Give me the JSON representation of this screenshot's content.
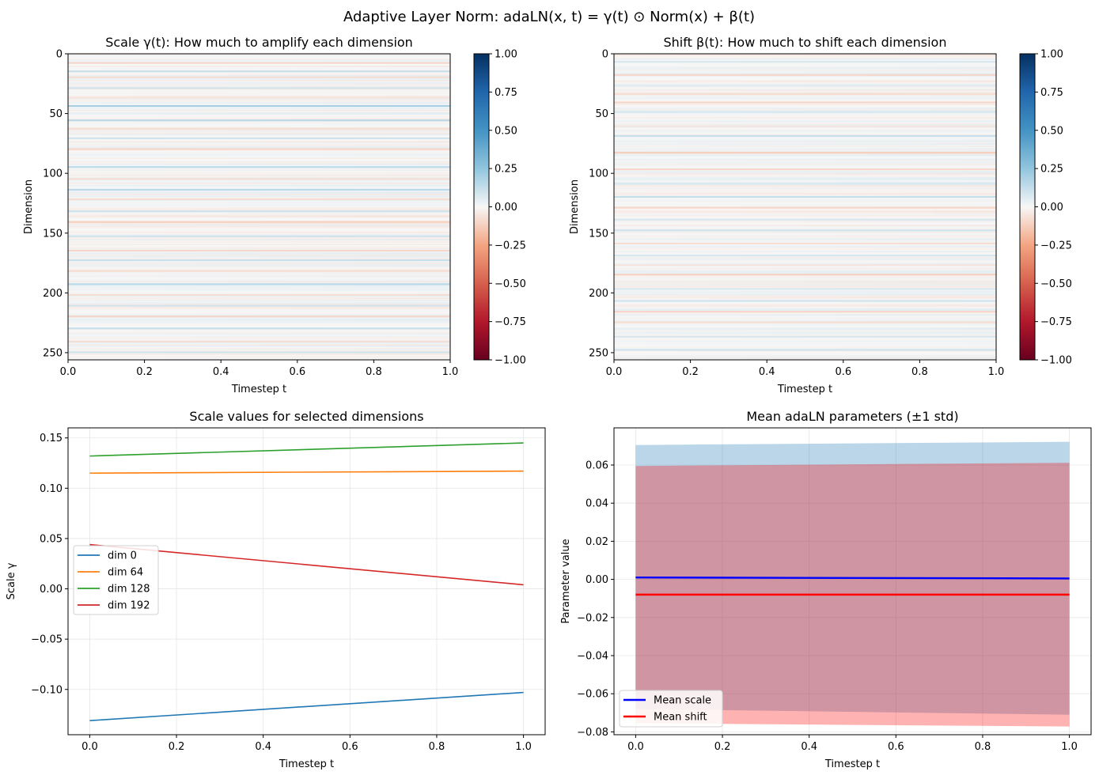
{
  "figure": {
    "suptitle": "Adaptive Layer Norm: adaLN(x, t) = γ(t) ⊙ Norm(x) + β(t)"
  },
  "chart_data": [
    {
      "type": "heatmap",
      "title": "Scale γ(t): How much to amplify each dimension",
      "xlabel": "Timestep t",
      "ylabel": "Dimension",
      "xlim": [
        0.0,
        1.0
      ],
      "ylim": [
        256,
        0
      ],
      "xticks": [
        "0.0",
        "0.2",
        "0.4",
        "0.6",
        "0.8",
        "1.0"
      ],
      "yticks": [
        "0",
        "50",
        "100",
        "150",
        "200",
        "250"
      ],
      "colormap": "RdBu",
      "clim": [
        -1.0,
        1.0
      ],
      "colorbar_ticks": [
        "1.00",
        "0.75",
        "0.50",
        "0.25",
        "0.00",
        "−0.25",
        "−0.50",
        "−0.75",
        "−1.00"
      ],
      "n_dims": 256,
      "bands": [
        {
          "dim": 7,
          "value": -0.1
        },
        {
          "dim": 14,
          "value": 0.12
        },
        {
          "dim": 19,
          "value": -0.08
        },
        {
          "dim": 28,
          "value": 0.1
        },
        {
          "dim": 36,
          "value": -0.06
        },
        {
          "dim": 43,
          "value": 0.2
        },
        {
          "dim": 55,
          "value": 0.15
        },
        {
          "dim": 62,
          "value": -0.08
        },
        {
          "dim": 70,
          "value": 0.1
        },
        {
          "dim": 79,
          "value": -0.1
        },
        {
          "dim": 94,
          "value": 0.14
        },
        {
          "dim": 104,
          "value": -0.08
        },
        {
          "dim": 113,
          "value": 0.15
        },
        {
          "dim": 121,
          "value": -0.08
        },
        {
          "dim": 131,
          "value": 0.1
        },
        {
          "dim": 140,
          "value": -0.12
        },
        {
          "dim": 152,
          "value": 0.1
        },
        {
          "dim": 164,
          "value": -0.1
        },
        {
          "dim": 172,
          "value": 0.12
        },
        {
          "dim": 181,
          "value": -0.08
        },
        {
          "dim": 192,
          "value": 0.15
        },
        {
          "dim": 201,
          "value": -0.08
        },
        {
          "dim": 210,
          "value": 0.1
        },
        {
          "dim": 219,
          "value": -0.1
        },
        {
          "dim": 229,
          "value": 0.12
        },
        {
          "dim": 240,
          "value": -0.08
        },
        {
          "dim": 249,
          "value": 0.1
        }
      ]
    },
    {
      "type": "heatmap",
      "title": "Shift β(t): How much to shift each dimension",
      "xlabel": "Timestep t",
      "ylabel": "Dimension",
      "xlim": [
        0.0,
        1.0
      ],
      "ylim": [
        256,
        0
      ],
      "xticks": [
        "0.0",
        "0.2",
        "0.4",
        "0.6",
        "0.8",
        "1.0"
      ],
      "yticks": [
        "0",
        "50",
        "100",
        "150",
        "200",
        "250"
      ],
      "colormap": "RdBu",
      "clim": [
        -1.0,
        1.0
      ],
      "colorbar_ticks": [
        "1.00",
        "0.75",
        "0.50",
        "0.25",
        "0.00",
        "−0.25",
        "−0.50",
        "−0.75",
        "−1.00"
      ],
      "n_dims": 256,
      "bands": [
        {
          "dim": 6,
          "value": 0.08
        },
        {
          "dim": 17,
          "value": -0.1
        },
        {
          "dim": 26,
          "value": 0.06
        },
        {
          "dim": 33,
          "value": -0.08
        },
        {
          "dim": 40,
          "value": -0.1
        },
        {
          "dim": 48,
          "value": 0.08
        },
        {
          "dim": 60,
          "value": -0.06
        },
        {
          "dim": 68,
          "value": 0.12
        },
        {
          "dim": 82,
          "value": -0.12
        },
        {
          "dim": 96,
          "value": -0.1
        },
        {
          "dim": 108,
          "value": 0.08
        },
        {
          "dim": 119,
          "value": 0.12
        },
        {
          "dim": 128,
          "value": -0.1
        },
        {
          "dim": 138,
          "value": 0.08
        },
        {
          "dim": 147,
          "value": 0.1
        },
        {
          "dim": 158,
          "value": -0.08
        },
        {
          "dim": 168,
          "value": 0.08
        },
        {
          "dim": 176,
          "value": -0.06
        },
        {
          "dim": 184,
          "value": -0.12
        },
        {
          "dim": 196,
          "value": 0.08
        },
        {
          "dim": 206,
          "value": 0.1
        },
        {
          "dim": 215,
          "value": -0.1
        },
        {
          "dim": 224,
          "value": -0.08
        },
        {
          "dim": 236,
          "value": 0.08
        },
        {
          "dim": 247,
          "value": 0.1
        }
      ]
    },
    {
      "type": "line",
      "title": "Scale values for selected dimensions",
      "xlabel": "Timestep t",
      "ylabel": "Scale γ",
      "xlim": [
        -0.05,
        1.05
      ],
      "ylim": [
        -0.145,
        0.16
      ],
      "xticks": [
        0.0,
        0.2,
        0.4,
        0.6,
        0.8,
        1.0
      ],
      "xtick_labels": [
        "0.0",
        "0.2",
        "0.4",
        "0.6",
        "0.8",
        "1.0"
      ],
      "yticks": [
        0.15,
        0.1,
        0.05,
        0.0,
        -0.05,
        -0.1
      ],
      "ytick_labels": [
        "0.15",
        "0.10",
        "0.05",
        "0.00",
        "−0.05",
        "−0.10"
      ],
      "grid": true,
      "legend_position": "center-left",
      "series": [
        {
          "name": "dim 0",
          "color": "#1f77b4",
          "x": [
            0.0,
            1.0
          ],
          "y": [
            -0.131,
            -0.103
          ]
        },
        {
          "name": "dim 64",
          "color": "#ff7f0e",
          "x": [
            0.0,
            1.0
          ],
          "y": [
            0.115,
            0.117
          ]
        },
        {
          "name": "dim 128",
          "color": "#2ca02c",
          "x": [
            0.0,
            1.0
          ],
          "y": [
            0.132,
            0.145
          ]
        },
        {
          "name": "dim 192",
          "color": "#d62728",
          "x": [
            0.0,
            1.0
          ],
          "y": [
            0.044,
            0.004
          ]
        }
      ]
    },
    {
      "type": "area",
      "title": "Mean adaLN parameters (±1 std)",
      "xlabel": "Timestep t",
      "ylabel": "Parameter value",
      "xlim": [
        -0.05,
        1.05
      ],
      "ylim": [
        -0.0815,
        0.0795
      ],
      "xticks": [
        0.0,
        0.2,
        0.4,
        0.6,
        0.8,
        1.0
      ],
      "xtick_labels": [
        "0.0",
        "0.2",
        "0.4",
        "0.6",
        "0.8",
        "1.0"
      ],
      "yticks": [
        0.06,
        0.04,
        0.02,
        0.0,
        -0.02,
        -0.04,
        -0.06,
        -0.08
      ],
      "ytick_labels": [
        "0.06",
        "0.04",
        "0.02",
        "0.00",
        "−0.02",
        "−0.04",
        "−0.06",
        "−0.08"
      ],
      "grid": true,
      "legend_position": "lower-left",
      "series": [
        {
          "name": "Mean scale",
          "color": "#0000ff",
          "fill": "#1f77b4",
          "x": [
            0.0,
            1.0
          ],
          "mean": [
            0.001,
            0.0005
          ],
          "upper": [
            0.0705,
            0.0722
          ],
          "lower": [
            -0.068,
            -0.071
          ]
        },
        {
          "name": "Mean shift",
          "color": "#ff0000",
          "fill": "#ff0000",
          "x": [
            0.0,
            1.0
          ],
          "mean": [
            -0.008,
            -0.008
          ],
          "upper": [
            0.0595,
            0.0612
          ],
          "lower": [
            -0.0755,
            -0.0772
          ]
        }
      ]
    }
  ]
}
